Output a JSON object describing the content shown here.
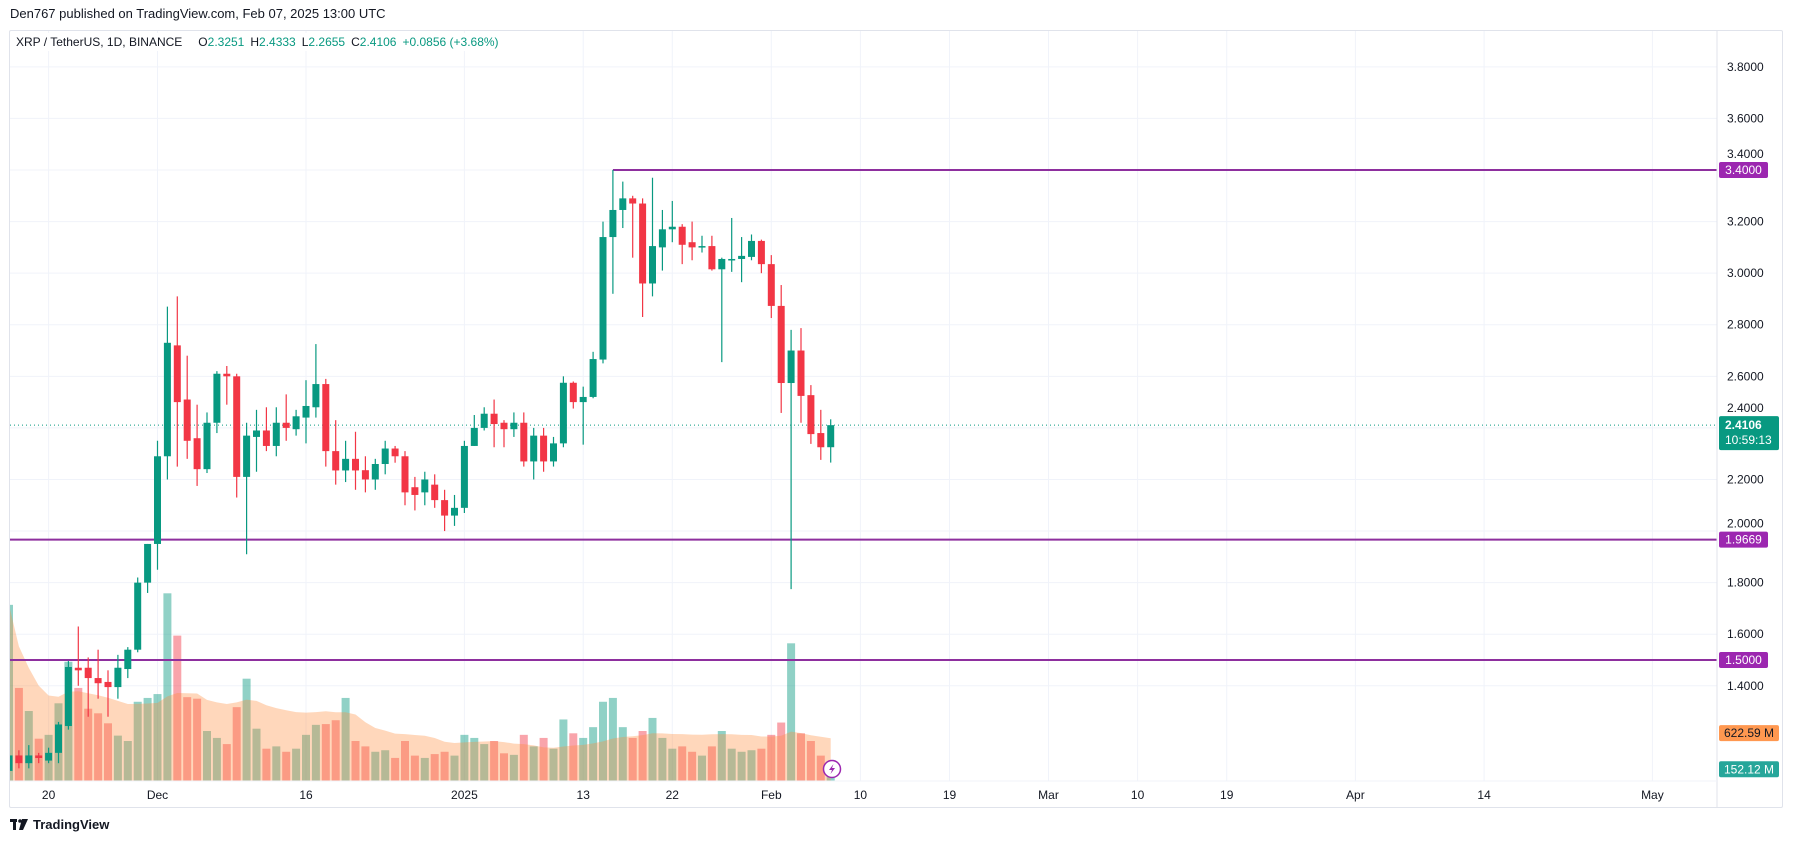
{
  "publish_line": "Den767 published on TradingView.com, Feb 07, 2025 13:00 UTC",
  "legend": {
    "symbol": "XRP / TetherUS, 1D, BINANCE",
    "o_label": "O",
    "o_value": "2.3251",
    "h_label": "H",
    "h_value": "2.4333",
    "l_label": "L",
    "l_value": "2.2655",
    "c_label": "C",
    "c_value": "2.4106",
    "change": "+0.0856 (+3.68%)"
  },
  "footer": {
    "brand": "TradingView",
    "logo_text": "TV"
  },
  "colors": {
    "up": "#089981",
    "down": "#F23645",
    "level_line": "#8E2F9E",
    "volume_ma": "#FF9850",
    "grid": "#F0F3FA"
  },
  "chart_data": {
    "type": "candlestick",
    "title": "XRP / TetherUS, 1D, BINANCE",
    "x_start": "2024-11-16",
    "x_unit": "1D",
    "ylim": [
      1.26,
      3.86
    ],
    "y_ticks": [
      "3.8000",
      "3.6000",
      "3.4000",
      "3.2000",
      "3.0000",
      "2.8000",
      "2.6000",
      "2.4000",
      "2.2000",
      "2.0000",
      "1.8000",
      "1.6000",
      "1.4000"
    ],
    "x_ticks": [
      {
        "label": "20",
        "day": 4
      },
      {
        "label": "Dec",
        "day": 15
      },
      {
        "label": "16",
        "day": 30
      },
      {
        "label": "2025",
        "day": 46
      },
      {
        "label": "13",
        "day": 58
      },
      {
        "label": "22",
        "day": 67
      },
      {
        "label": "Feb",
        "day": 77
      },
      {
        "label": "10",
        "day": 86
      },
      {
        "label": "19",
        "day": 95
      },
      {
        "label": "Mar",
        "day": 105
      },
      {
        "label": "10",
        "day": 114
      },
      {
        "label": "19",
        "day": 123
      },
      {
        "label": "Apr",
        "day": 136
      },
      {
        "label": "14",
        "day": 149
      },
      {
        "label": "May",
        "day": 166
      }
    ],
    "ohlc": [
      [
        1.07,
        1.18,
        1.06,
        1.13
      ],
      [
        1.13,
        1.15,
        1.08,
        1.1
      ],
      [
        1.1,
        1.17,
        1.08,
        1.13
      ],
      [
        1.13,
        1.14,
        1.1,
        1.12
      ],
      [
        1.11,
        1.16,
        1.1,
        1.14
      ],
      [
        1.14,
        1.26,
        1.1,
        1.25
      ],
      [
        1.244,
        1.496,
        1.23,
        1.473
      ],
      [
        1.47,
        1.63,
        1.4,
        1.46
      ],
      [
        1.47,
        1.51,
        1.28,
        1.43
      ],
      [
        1.43,
        1.54,
        1.35,
        1.41
      ],
      [
        1.415,
        1.46,
        1.28,
        1.395
      ],
      [
        1.395,
        1.52,
        1.35,
        1.47
      ],
      [
        1.465,
        1.55,
        1.43,
        1.54
      ],
      [
        1.54,
        1.82,
        1.53,
        1.8
      ],
      [
        1.8,
        1.95,
        1.76,
        1.95
      ],
      [
        1.95,
        2.35,
        1.85,
        2.29
      ],
      [
        2.29,
        2.87,
        2.2,
        2.73
      ],
      [
        2.72,
        2.91,
        2.25,
        2.5
      ],
      [
        2.51,
        2.68,
        2.28,
        2.35
      ],
      [
        2.36,
        2.49,
        2.175,
        2.24
      ],
      [
        2.24,
        2.46,
        2.225,
        2.42
      ],
      [
        2.42,
        2.62,
        2.38,
        2.61
      ],
      [
        2.61,
        2.64,
        2.49,
        2.6
      ],
      [
        2.6,
        2.61,
        2.13,
        2.21
      ],
      [
        2.21,
        2.42,
        1.91,
        2.37
      ],
      [
        2.365,
        2.47,
        2.23,
        2.39
      ],
      [
        2.39,
        2.48,
        2.31,
        2.33
      ],
      [
        2.33,
        2.48,
        2.29,
        2.42
      ],
      [
        2.42,
        2.53,
        2.35,
        2.4
      ],
      [
        2.395,
        2.47,
        2.37,
        2.445
      ],
      [
        2.44,
        2.585,
        2.34,
        2.485
      ],
      [
        2.48,
        2.725,
        2.44,
        2.57
      ],
      [
        2.57,
        2.59,
        2.25,
        2.31
      ],
      [
        2.31,
        2.43,
        2.18,
        2.235
      ],
      [
        2.235,
        2.35,
        2.19,
        2.28
      ],
      [
        2.28,
        2.385,
        2.16,
        2.235
      ],
      [
        2.236,
        2.29,
        2.15,
        2.2
      ],
      [
        2.2,
        2.28,
        2.16,
        2.26
      ],
      [
        2.26,
        2.35,
        2.22,
        2.32
      ],
      [
        2.32,
        2.33,
        2.265,
        2.29
      ],
      [
        2.29,
        2.31,
        2.1,
        2.15
      ],
      [
        2.17,
        2.21,
        2.08,
        2.14
      ],
      [
        2.15,
        2.23,
        2.1,
        2.2
      ],
      [
        2.18,
        2.22,
        2.09,
        2.12
      ],
      [
        2.12,
        2.16,
        2.0,
        2.06
      ],
      [
        2.06,
        2.14,
        2.02,
        2.09
      ],
      [
        2.09,
        2.35,
        2.07,
        2.33
      ],
      [
        2.33,
        2.45,
        2.33,
        2.4
      ],
      [
        2.4,
        2.48,
        2.39,
        2.455
      ],
      [
        2.455,
        2.51,
        2.325,
        2.415
      ],
      [
        2.42,
        2.43,
        2.325,
        2.395
      ],
      [
        2.395,
        2.46,
        2.365,
        2.42
      ],
      [
        2.42,
        2.46,
        2.25,
        2.27
      ],
      [
        2.27,
        2.4,
        2.2,
        2.37
      ],
      [
        2.37,
        2.4,
        2.23,
        2.27
      ],
      [
        2.27,
        2.365,
        2.25,
        2.34
      ],
      [
        2.34,
        2.6,
        2.325,
        2.575
      ],
      [
        2.575,
        2.58,
        2.475,
        2.5
      ],
      [
        2.5,
        2.56,
        2.335,
        2.52
      ],
      [
        2.52,
        2.695,
        2.515,
        2.667
      ],
      [
        2.665,
        3.2,
        2.65,
        3.14
      ],
      [
        3.14,
        3.4,
        2.92,
        3.245
      ],
      [
        3.245,
        3.355,
        3.175,
        3.29
      ],
      [
        3.29,
        3.3,
        3.06,
        3.27
      ],
      [
        3.27,
        3.29,
        2.83,
        2.96
      ],
      [
        2.96,
        3.37,
        2.91,
        3.105
      ],
      [
        3.1,
        3.245,
        3.01,
        3.17
      ],
      [
        3.17,
        3.28,
        3.12,
        3.18
      ],
      [
        3.18,
        3.19,
        3.035,
        3.11
      ],
      [
        3.12,
        3.2,
        3.05,
        3.1
      ],
      [
        3.1,
        3.145,
        3.08,
        3.105
      ],
      [
        3.105,
        3.145,
        3.01,
        3.015
      ],
      [
        3.015,
        3.06,
        2.655,
        3.055
      ],
      [
        3.05,
        3.214,
        3.005,
        3.055
      ],
      [
        3.055,
        3.14,
        2.965,
        3.067
      ],
      [
        3.063,
        3.15,
        3.05,
        3.125
      ],
      [
        3.125,
        3.13,
        3.0,
        3.035
      ],
      [
        3.035,
        3.07,
        2.826,
        2.873
      ],
      [
        2.873,
        2.954,
        2.458,
        2.574
      ],
      [
        2.574,
        2.78,
        1.775,
        2.7
      ],
      [
        2.7,
        2.787,
        2.42,
        2.524
      ],
      [
        2.527,
        2.566,
        2.338,
        2.376
      ],
      [
        2.38,
        2.47,
        2.276,
        2.325
      ],
      [
        2.3251,
        2.4333,
        2.2655,
        2.4106
      ]
    ],
    "volume_millions": [
      2290,
      1210,
      910,
      550,
      600,
      1010,
      1550,
      1210,
      940,
      880,
      750,
      590,
      520,
      1030,
      1080,
      1130,
      2440,
      1890,
      1090,
      1070,
      650,
      560,
      480,
      960,
      1330,
      680,
      420,
      450,
      380,
      420,
      600,
      730,
      740,
      790,
      1080,
      520,
      450,
      380,
      400,
      300,
      520,
      330,
      300,
      350,
      380,
      330,
      600,
      560,
      480,
      520,
      360,
      340,
      600,
      450,
      560,
      420,
      800,
      620,
      560,
      700,
      1030,
      1080,
      700,
      560,
      650,
      820,
      560,
      420,
      450,
      380,
      330,
      450,
      650,
      420,
      380,
      400,
      420,
      600,
      760,
      1790,
      620,
      520,
      330,
      152.12
    ],
    "levels": [
      {
        "price": 3.4,
        "label": "3.4000",
        "from_day": 61
      },
      {
        "price": 1.9669,
        "label": "1.9669",
        "from_day": 0
      },
      {
        "price": 1.5,
        "label": "1.5000",
        "from_day": 0
      }
    ],
    "last_price": {
      "value": 2.4106,
      "label": "2.4106",
      "countdown": "10:59:13"
    },
    "volume_labels": {
      "ma": "622.59 M",
      "ma_value": 622.59,
      "current": "152.12 M",
      "current_value": 152.12
    }
  }
}
